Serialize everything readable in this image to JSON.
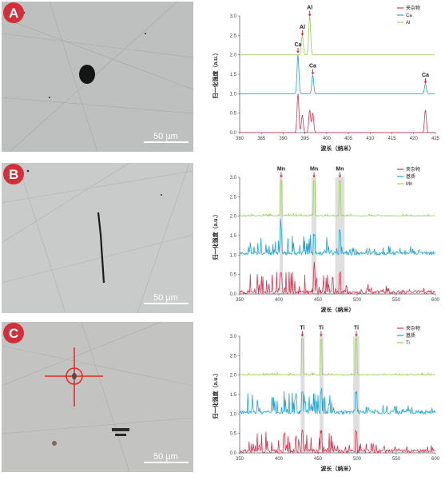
{
  "panels": [
    {
      "letter": "A",
      "scale_bar": "50 µm"
    },
    {
      "letter": "B",
      "scale_bar": "50 µm"
    },
    {
      "letter": "C",
      "scale_bar": "50 µm"
    }
  ],
  "colors": {
    "red": "#d9344f",
    "blue": "#1fa3d6",
    "green": "#9dcc5a",
    "badge": "#d32f3b",
    "highlight": "#d9d9d9"
  },
  "chart_data": [
    {
      "type": "line",
      "xlabel": "波长（纳米）",
      "ylabel": "归一化强度（a.u.）",
      "xlim": [
        380,
        425
      ],
      "ylim": [
        0,
        3
      ],
      "xticks": [
        380,
        385,
        390,
        395,
        400,
        405,
        410,
        415,
        420,
        425
      ],
      "yticks": [
        0.0,
        0.5,
        1.0,
        1.5,
        2.0,
        2.5,
        3.0
      ],
      "legend_position": "top-right",
      "series": [
        {
          "name": "夹杂物",
          "color": "red",
          "offset": 0
        },
        {
          "name": "Ca",
          "color": "blue",
          "offset": 1
        },
        {
          "name": "Al",
          "color": "green",
          "offset": 2
        }
      ],
      "peaks": {
        "red": [
          [
            393.4,
            1.0
          ],
          [
            394.4,
            0.45
          ],
          [
            396.1,
            0.58
          ],
          [
            396.8,
            0.5
          ],
          [
            422.7,
            0.58
          ]
        ],
        "blue": [
          [
            393.4,
            1.0
          ],
          [
            396.8,
            0.48
          ],
          [
            422.7,
            0.25
          ]
        ],
        "green": [
          [
            394.4,
            0.5
          ],
          [
            396.1,
            1.0
          ]
        ]
      },
      "annotations": [
        {
          "text": "Ca",
          "x": 393.4,
          "y": 2.1
        },
        {
          "text": "Al",
          "x": 394.4,
          "y": 2.55
        },
        {
          "text": "Al",
          "x": 396.1,
          "y": 3.05
        },
        {
          "text": "Ca",
          "x": 396.8,
          "y": 1.55
        },
        {
          "text": "Ca",
          "x": 422.7,
          "y": 1.32
        }
      ],
      "highlights": []
    },
    {
      "type": "line",
      "xlabel": "波长（纳米）",
      "ylabel": "归一化强度（a.u.）",
      "xlim": [
        350,
        600
      ],
      "ylim": [
        0,
        3
      ],
      "xticks": [
        350,
        400,
        450,
        500,
        550,
        600
      ],
      "yticks": [
        0.0,
        0.5,
        1.0,
        1.5,
        2.0,
        2.5,
        3.0
      ],
      "legend_position": "top-right",
      "series": [
        {
          "name": "夹杂物",
          "color": "red",
          "offset": 0
        },
        {
          "name": "基质",
          "color": "blue",
          "offset": 1
        },
        {
          "name": "Mn",
          "color": "green",
          "offset": 2
        }
      ],
      "annotations": [
        {
          "text": "Mn",
          "x": 403,
          "y": 3.05
        },
        {
          "text": "Mn",
          "x": 445,
          "y": 3.05
        },
        {
          "text": "Mn",
          "x": 478,
          "y": 3.05
        }
      ],
      "highlights": [
        [
          401,
          405
        ],
        [
          442,
          448
        ],
        [
          472,
          484
        ]
      ]
    },
    {
      "type": "line",
      "xlabel": "波长（纳米）",
      "ylabel": "归一化强度（a.u.）",
      "xlim": [
        350,
        600
      ],
      "ylim": [
        0,
        3
      ],
      "xticks": [
        350,
        400,
        450,
        500,
        550,
        600
      ],
      "yticks": [
        0.0,
        0.5,
        1.0,
        1.5,
        2.0,
        2.5,
        3.0
      ],
      "legend_position": "top-right",
      "series": [
        {
          "name": "夹杂物",
          "color": "red",
          "offset": 0
        },
        {
          "name": "基质",
          "color": "blue",
          "offset": 1
        },
        {
          "name": "Ti",
          "color": "green",
          "offset": 2
        }
      ],
      "annotations": [
        {
          "text": "Ti",
          "x": 430,
          "y": 3.05
        },
        {
          "text": "Ti",
          "x": 454,
          "y": 3.05
        },
        {
          "text": "Ti",
          "x": 499,
          "y": 3.05
        }
      ],
      "highlights": [
        [
          428,
          433
        ],
        [
          452,
          457
        ],
        [
          495,
          503
        ]
      ]
    }
  ]
}
